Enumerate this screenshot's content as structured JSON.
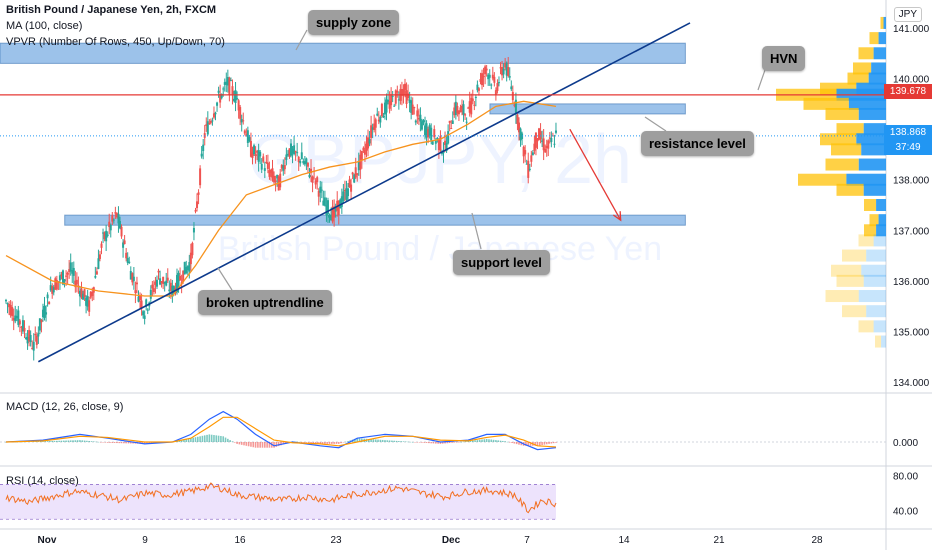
{
  "legend": {
    "title": "British Pound / Japanese Yen, 2h, FXCM",
    "ma": "MA (100, close)",
    "vpvr": "VPVR (Number Of Rows, 450, Up/Down, 70)"
  },
  "watermark": {
    "symbol": "GBPJPY, 2h",
    "name": "British Pound / Japanese Yen"
  },
  "currency": "JPY",
  "annotations": {
    "supply_zone": "supply zone",
    "hvn": "HVN",
    "resistance_level": "resistance level",
    "support_level": "support level",
    "broken_uptrendline": "broken uptrendline"
  },
  "price_tags": {
    "hvn_price": "139.678",
    "last_price": "138.868",
    "countdown": "37:49"
  },
  "colors": {
    "up": "#26a69a",
    "down": "#ef5350",
    "ma": "#f7931e",
    "zone": "#4a90d9",
    "trendline": "#0d3a8c",
    "hvn_line": "#e53935",
    "macd": "#2962ff",
    "signal": "#ff9800",
    "rsi": "#f26f21",
    "rsi_band": "#e9dcfb",
    "vp_up": "#2196f3",
    "vp_down": "#ffc107"
  },
  "chart_data": [
    {
      "type": "candlestick",
      "title": "British Pound / Japanese Yen, 2h, FXCM",
      "ylim": [
        133.8,
        141.3
      ],
      "y_ticks": [
        "141.000",
        "140.000",
        "139.000",
        "138.000",
        "137.000",
        "136.000",
        "135.000",
        "134.000"
      ],
      "x_ticks": [
        "Nov",
        "9",
        "16",
        "23",
        "Dec",
        "7",
        "14",
        "21",
        "28"
      ],
      "price_path": [
        [
          0,
          135.6
        ],
        [
          3,
          135.2
        ],
        [
          6,
          134.7
        ],
        [
          10,
          135.9
        ],
        [
          14,
          136.2
        ],
        [
          18,
          135.5
        ],
        [
          21,
          136.8
        ],
        [
          24,
          137.3
        ],
        [
          27,
          136.2
        ],
        [
          30,
          135.4
        ],
        [
          33,
          136.1
        ],
        [
          36,
          135.8
        ],
        [
          40,
          136.4
        ],
        [
          43,
          138.9
        ],
        [
          46,
          139.6
        ],
        [
          48,
          139.9
        ],
        [
          50,
          139.6
        ],
        [
          53,
          138.6
        ],
        [
          56,
          138.3
        ],
        [
          59,
          137.9
        ],
        [
          61,
          138.6
        ],
        [
          64,
          138.4
        ],
        [
          67,
          138.0
        ],
        [
          69,
          137.5
        ],
        [
          71,
          137.3
        ],
        [
          74,
          137.8
        ],
        [
          77,
          138.4
        ],
        [
          80,
          139.2
        ],
        [
          83,
          139.5
        ],
        [
          86,
          139.8
        ],
        [
          89,
          139.2
        ],
        [
          92,
          138.9
        ],
        [
          95,
          138.6
        ],
        [
          97,
          139.4
        ],
        [
          100,
          139.3
        ],
        [
          102,
          139.8
        ],
        [
          104,
          140.2
        ],
        [
          106,
          139.8
        ],
        [
          108,
          140.3
        ],
        [
          110,
          139.6
        ],
        [
          112,
          138.6
        ],
        [
          113,
          138.2
        ],
        [
          115,
          138.9
        ],
        [
          117,
          138.6
        ],
        [
          119,
          138.87
        ]
      ],
      "ma_100": [
        [
          0,
          136.5
        ],
        [
          10,
          136.0
        ],
        [
          20,
          135.8
        ],
        [
          30,
          135.7
        ],
        [
          36,
          135.7
        ],
        [
          41,
          136.3
        ],
        [
          46,
          137.0
        ],
        [
          52,
          137.7
        ],
        [
          58,
          137.9
        ],
        [
          64,
          138.1
        ],
        [
          70,
          138.25
        ],
        [
          76,
          138.35
        ],
        [
          82,
          138.55
        ],
        [
          88,
          138.7
        ],
        [
          94,
          138.8
        ],
        [
          100,
          139.1
        ],
        [
          106,
          139.45
        ],
        [
          112,
          139.55
        ],
        [
          119,
          139.45
        ]
      ],
      "zones": [
        {
          "label": "supply zone",
          "x": [
            0,
            147
          ],
          "y": [
            140.3,
            140.7
          ]
        },
        {
          "label": "resistance level",
          "x": [
            106,
            147
          ],
          "y": [
            139.3,
            139.5
          ]
        },
        {
          "label": "support level",
          "x": [
            14,
            147
          ],
          "y": [
            137.1,
            137.3
          ]
        }
      ],
      "hvn_level": 139.678,
      "last_price": 138.868,
      "trendline": [
        [
          7,
          134.4
        ],
        [
          148,
          141.1
        ]
      ],
      "projection": [
        [
          122,
          139.0
        ],
        [
          133,
          137.2
        ]
      ],
      "volume_profile": [
        [
          141.1,
          0.05
        ],
        [
          140.8,
          0.15
        ],
        [
          140.5,
          0.25
        ],
        [
          140.2,
          0.3
        ],
        [
          140.0,
          0.35
        ],
        [
          139.8,
          0.6
        ],
        [
          139.68,
          1.0
        ],
        [
          139.5,
          0.75
        ],
        [
          139.3,
          0.55
        ],
        [
          139.0,
          0.45
        ],
        [
          138.8,
          0.6
        ],
        [
          138.6,
          0.5
        ],
        [
          138.3,
          0.55
        ],
        [
          138.0,
          0.8
        ],
        [
          137.8,
          0.45
        ],
        [
          137.5,
          0.2
        ],
        [
          137.2,
          0.15
        ],
        [
          137.0,
          0.2
        ],
        [
          136.8,
          0.25
        ],
        [
          136.5,
          0.4
        ],
        [
          136.2,
          0.5
        ],
        [
          136.0,
          0.45
        ],
        [
          135.7,
          0.55
        ],
        [
          135.4,
          0.4
        ],
        [
          135.1,
          0.25
        ],
        [
          134.8,
          0.1
        ]
      ]
    },
    {
      "type": "line",
      "title": "MACD (12, 26, close, 9)",
      "y_ticks": [
        "0.000"
      ],
      "series": [
        {
          "name": "MACD",
          "values": [
            [
              0,
              0.0
            ],
            [
              8,
              0.05
            ],
            [
              16,
              0.2
            ],
            [
              22,
              0.1
            ],
            [
              30,
              -0.05
            ],
            [
              36,
              0.0
            ],
            [
              40,
              0.2
            ],
            [
              44,
              0.6
            ],
            [
              47,
              0.8
            ],
            [
              50,
              0.6
            ],
            [
              54,
              0.2
            ],
            [
              58,
              -0.1
            ],
            [
              62,
              0.0
            ],
            [
              68,
              -0.1
            ],
            [
              72,
              -0.15
            ],
            [
              76,
              0.1
            ],
            [
              82,
              0.2
            ],
            [
              88,
              0.15
            ],
            [
              94,
              0.0
            ],
            [
              100,
              0.05
            ],
            [
              104,
              0.2
            ],
            [
              108,
              0.2
            ],
            [
              112,
              -0.05
            ],
            [
              115,
              -0.2
            ],
            [
              119,
              -0.15
            ]
          ]
        },
        {
          "name": "Signal",
          "values": [
            [
              0,
              0.0
            ],
            [
              8,
              0.03
            ],
            [
              16,
              0.15
            ],
            [
              22,
              0.12
            ],
            [
              30,
              0.0
            ],
            [
              36,
              0.0
            ],
            [
              40,
              0.1
            ],
            [
              44,
              0.4
            ],
            [
              47,
              0.65
            ],
            [
              50,
              0.65
            ],
            [
              54,
              0.35
            ],
            [
              58,
              0.05
            ],
            [
              62,
              -0.02
            ],
            [
              68,
              -0.05
            ],
            [
              72,
              -0.1
            ],
            [
              76,
              0.0
            ],
            [
              82,
              0.15
            ],
            [
              88,
              0.15
            ],
            [
              94,
              0.05
            ],
            [
              100,
              0.03
            ],
            [
              104,
              0.12
            ],
            [
              108,
              0.18
            ],
            [
              112,
              0.05
            ],
            [
              115,
              -0.1
            ],
            [
              119,
              -0.13
            ]
          ]
        }
      ]
    },
    {
      "type": "line",
      "title": "RSI (14, close)",
      "y_ticks": [
        "80.00",
        "40.00"
      ],
      "ylim": [
        20,
        90
      ],
      "band": [
        30,
        70
      ],
      "series": [
        {
          "name": "RSI",
          "values": [
            [
              0,
              55
            ],
            [
              5,
              50
            ],
            [
              10,
              56
            ],
            [
              15,
              62
            ],
            [
              20,
              58
            ],
            [
              25,
              52
            ],
            [
              30,
              60
            ],
            [
              35,
              58
            ],
            [
              40,
              62
            ],
            [
              44,
              68
            ],
            [
              47,
              65
            ],
            [
              50,
              58
            ],
            [
              55,
              55
            ],
            [
              60,
              52
            ],
            [
              65,
              56
            ],
            [
              70,
              52
            ],
            [
              75,
              58
            ],
            [
              80,
              62
            ],
            [
              85,
              66
            ],
            [
              90,
              60
            ],
            [
              95,
              56
            ],
            [
              100,
              62
            ],
            [
              105,
              63
            ],
            [
              110,
              58
            ],
            [
              113,
              40
            ],
            [
              116,
              52
            ],
            [
              119,
              48
            ]
          ]
        }
      ]
    }
  ]
}
